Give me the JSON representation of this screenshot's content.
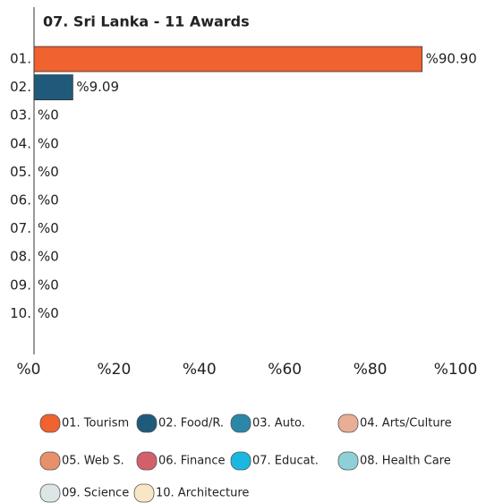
{
  "chart_data": {
    "type": "bar",
    "orientation": "horizontal",
    "title": "07. Sri Lanka - 11 Awards",
    "categories": [
      "01.",
      "02.",
      "03.",
      "04.",
      "05.",
      "06.",
      "07.",
      "08.",
      "09.",
      "10."
    ],
    "values": [
      90.9,
      9.09,
      0,
      0,
      0,
      0,
      0,
      0,
      0,
      0
    ],
    "value_labels": [
      "%90.90",
      "%9.09",
      "%0",
      "%0",
      "%0",
      "%0",
      "%0",
      "%0",
      "%0",
      "%0"
    ],
    "xlim": [
      0,
      100
    ],
    "xticks": [
      {
        "value": 0,
        "label": "%0"
      },
      {
        "value": 20,
        "label": "%20"
      },
      {
        "value": 40,
        "label": "%40"
      },
      {
        "value": 60,
        "label": "%60"
      },
      {
        "value": 80,
        "label": "%80"
      },
      {
        "value": 100,
        "label": "%100"
      }
    ],
    "legend": [
      {
        "name": "01. Tourism",
        "color": "#f0622f"
      },
      {
        "name": "02. Food/R.",
        "color": "#1f5a7a"
      },
      {
        "name": "03. Auto.",
        "color": "#2a87a8"
      },
      {
        "name": "04. Arts/Culture",
        "color": "#e8ae96"
      },
      {
        "name": "05. Web S.",
        "color": "#e8906a"
      },
      {
        "name": "06. Finance",
        "color": "#d2606a"
      },
      {
        "name": "07. Educat.",
        "color": "#1ab8e0"
      },
      {
        "name": "08. Health Care",
        "color": "#8dd0d8"
      },
      {
        "name": "09. Science",
        "color": "#dde6e6"
      },
      {
        "name": "10. Architecture",
        "color": "#f8e6c4"
      }
    ]
  }
}
